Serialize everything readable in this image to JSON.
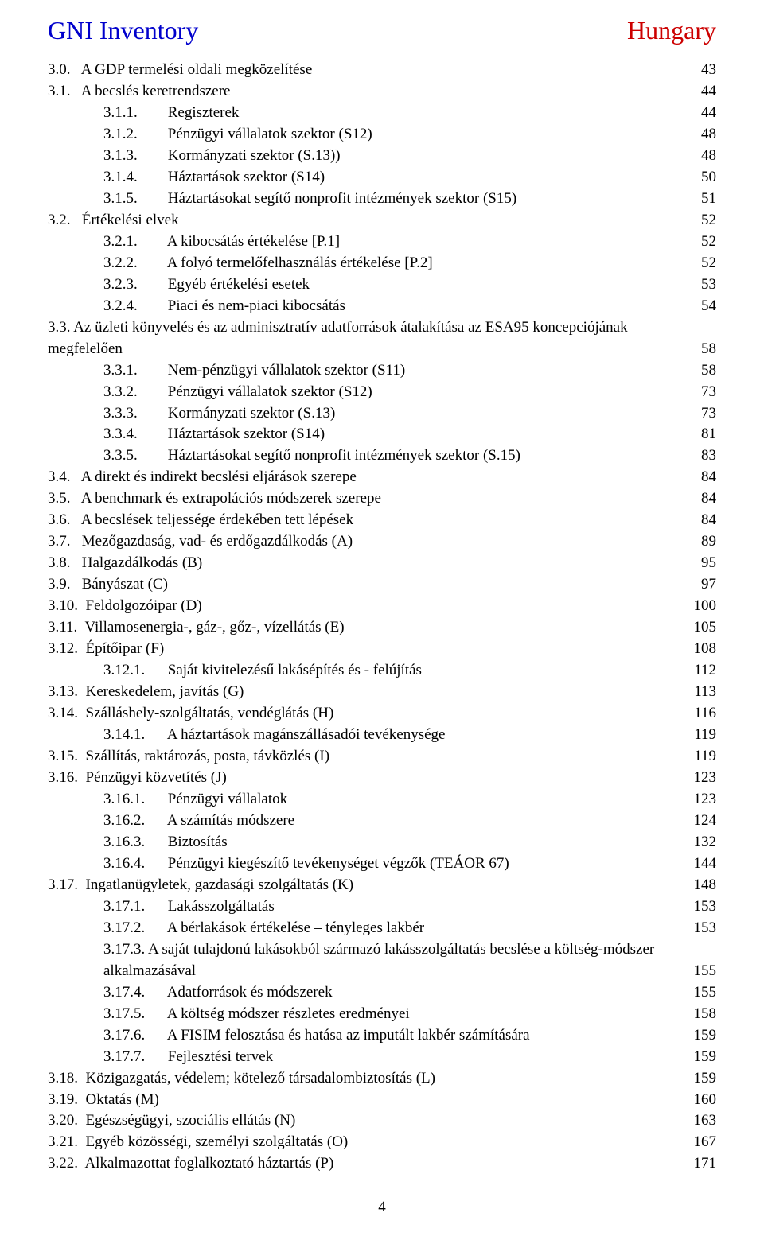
{
  "header": {
    "left": "GNI Inventory",
    "right": "Hungary"
  },
  "footer": {
    "pagenum": "4"
  },
  "toc": [
    {
      "indent": 0,
      "num": "3.0.   ",
      "title": "A GDP termelési oldali megközelítése",
      "page": "43"
    },
    {
      "indent": 0,
      "num": "3.1.   ",
      "title": "A becslés keretrendszere",
      "page": "44"
    },
    {
      "indent": 1,
      "num": "3.1.1.        ",
      "title": "Regiszterek",
      "page": "44"
    },
    {
      "indent": 1,
      "num": "3.1.2.        ",
      "title": "Pénzügyi vállalatok szektor (S12)",
      "page": "48"
    },
    {
      "indent": 1,
      "num": "3.1.3.        ",
      "title": "Kormányzati szektor (S.13))",
      "page": "48"
    },
    {
      "indent": 1,
      "num": "3.1.4.        ",
      "title": "Háztartások szektor (S14)",
      "page": "50"
    },
    {
      "indent": 1,
      "num": "3.1.5.        ",
      "title": "Háztartásokat segítő nonprofit intézmények szektor (S15)",
      "page": "51"
    },
    {
      "indent": 0,
      "num": "3.2.   ",
      "title": "Értékelési elvek",
      "page": "52"
    },
    {
      "indent": 1,
      "num": "3.2.1.        ",
      "title": "A kibocsátás értékelése [P.1]",
      "page": "52"
    },
    {
      "indent": 1,
      "num": "3.2.2.        ",
      "title": "A folyó termelőfelhasználás értékelése [P.2]",
      "page": "52"
    },
    {
      "indent": 1,
      "num": "3.2.3.        ",
      "title": "Egyéb értékelési esetek",
      "page": "53"
    },
    {
      "indent": 1,
      "num": "3.2.4.        ",
      "title": "Piaci és nem-piaci kibocsátás",
      "page": "54"
    },
    {
      "indent": 0,
      "wrap": true,
      "pre": "3.3.   Az üzleti könyvelés és az adminisztratív adatforrások átalakítása az ESA95 koncepciójának",
      "title": "megfelelően",
      "page": "58"
    },
    {
      "indent": 1,
      "num": "3.3.1.        ",
      "title": "Nem-pénzügyi vállalatok szektor (S11)",
      "page": "58"
    },
    {
      "indent": 1,
      "num": "3.3.2.        ",
      "title": "Pénzügyi vállalatok szektor (S12)",
      "page": "73"
    },
    {
      "indent": 1,
      "num": "3.3.3.        ",
      "title": "Kormányzati szektor (S.13)",
      "page": "73"
    },
    {
      "indent": 1,
      "num": "3.3.4.        ",
      "title": "Háztartások szektor (S14)",
      "page": "81"
    },
    {
      "indent": 1,
      "num": "3.3.5.        ",
      "title": "Háztartásokat segítő nonprofit intézmények szektor (S.15)",
      "page": "83"
    },
    {
      "indent": 0,
      "num": "3.4.   ",
      "title": "A direkt és indirekt becslési eljárások szerepe",
      "page": "84"
    },
    {
      "indent": 0,
      "num": "3.5.   ",
      "title": "A benchmark és extrapolációs módszerek szerepe",
      "page": "84"
    },
    {
      "indent": 0,
      "num": "3.6.   ",
      "title": "A becslések teljessége érdekében tett lépések",
      "page": "84"
    },
    {
      "indent": 0,
      "num": "3.7.   ",
      "title": "Mezőgazdaság, vad- és erdőgazdálkodás (A)",
      "page": "89"
    },
    {
      "indent": 0,
      "num": "3.8.   ",
      "title": "Halgazdálkodás (B)",
      "page": "95"
    },
    {
      "indent": 0,
      "num": "3.9.   ",
      "title": "Bányászat (C)",
      "page": "97"
    },
    {
      "indent": 0,
      "num": "3.10.  ",
      "title": "Feldolgozóipar (D)",
      "page": "100"
    },
    {
      "indent": 0,
      "num": "3.11.  ",
      "title": "Villamosenergia-, gáz-, gőz-, vízellátás (E)",
      "page": "105"
    },
    {
      "indent": 0,
      "num": "3.12.  ",
      "title": "Építőipar (F)",
      "page": "108"
    },
    {
      "indent": 1,
      "num": "3.12.1.      ",
      "title": "Saját kivitelezésű lakásépítés és - felújítás",
      "page": "112"
    },
    {
      "indent": 0,
      "num": "3.13.  ",
      "title": "Kereskedelem, javítás (G)",
      "page": "113"
    },
    {
      "indent": 0,
      "num": "3.14.  ",
      "title": "Szálláshely-szolgáltatás, vendéglátás (H)",
      "page": "116"
    },
    {
      "indent": 1,
      "num": "3.14.1.      ",
      "title": "A háztartások magánszállásadói tevékenysége",
      "page": "119"
    },
    {
      "indent": 0,
      "num": "3.15.  ",
      "title": "Szállítás, raktározás, posta, távközlés (I)",
      "page": "119"
    },
    {
      "indent": 0,
      "num": "3.16.  ",
      "title": "Pénzügyi közvetítés (J)",
      "page": "123"
    },
    {
      "indent": 1,
      "num": "3.16.1.      ",
      "title": "Pénzügyi vállalatok",
      "page": "123"
    },
    {
      "indent": 1,
      "num": "3.16.2.      ",
      "title": "A számítás módszere",
      "page": "124"
    },
    {
      "indent": 1,
      "num": "3.16.3.      ",
      "title": "Biztosítás",
      "page": "132"
    },
    {
      "indent": 1,
      "num": "3.16.4.      ",
      "title": "Pénzügyi kiegészítő tevékenységet végzők (TEÁOR 67)",
      "page": "144"
    },
    {
      "indent": 0,
      "num": "3.17.  ",
      "title": "Ingatlanügyletek, gazdasági szolgáltatás (K)",
      "page": "148"
    },
    {
      "indent": 1,
      "num": "3.17.1.      ",
      "title": "Lakásszolgáltatás",
      "page": "153"
    },
    {
      "indent": 1,
      "num": "3.17.2.      ",
      "title": "A bérlakások értékelése – tényleges lakbér",
      "page": "153"
    },
    {
      "indent": 1,
      "wrap": true,
      "pre": "3.17.3.      A saját tulajdonú lakásokból származó lakásszolgáltatás becslése a költség-módszer",
      "title": "alkalmazásával",
      "page": "155"
    },
    {
      "indent": 1,
      "num": "3.17.4.      ",
      "title": "Adatforrások és módszerek",
      "page": "155"
    },
    {
      "indent": 1,
      "num": "3.17.5.      ",
      "title": "A költség módszer részletes eredményei",
      "page": "158"
    },
    {
      "indent": 1,
      "num": "3.17.6.      ",
      "title": "A FISIM felosztása és hatása az imputált lakbér számítására",
      "page": "159"
    },
    {
      "indent": 1,
      "num": "3.17.7.      ",
      "title": "Fejlesztési tervek",
      "page": "159"
    },
    {
      "indent": 0,
      "num": "3.18.  ",
      "title": "Közigazgatás, védelem; kötelező társadalombiztosítás (L)",
      "page": "159"
    },
    {
      "indent": 0,
      "num": "3.19.  ",
      "title": "Oktatás (M)",
      "page": "160"
    },
    {
      "indent": 0,
      "num": "3.20.  ",
      "title": "Egészségügyi, szociális ellátás (N)",
      "page": "163"
    },
    {
      "indent": 0,
      "num": "3.21.  ",
      "title": "Egyéb közösségi, személyi szolgáltatás (O)",
      "page": "167"
    },
    {
      "indent": 0,
      "num": "3.22.  ",
      "title": "Alkalmazottat foglalkoztató háztartás (P)",
      "page": "171"
    }
  ]
}
